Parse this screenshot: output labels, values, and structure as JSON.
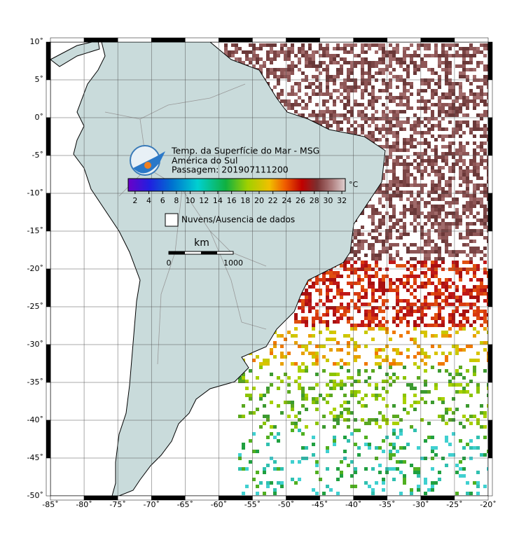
{
  "map": {
    "lon_range": [
      -85,
      -20
    ],
    "lat_range": [
      10,
      -50
    ],
    "lon_ticks": [
      {
        "value": -85,
        "label": "-85˚"
      },
      {
        "value": -80,
        "label": "-80˚"
      },
      {
        "value": -75,
        "label": "-75˚"
      },
      {
        "value": -70,
        "label": "-70˚"
      },
      {
        "value": -65,
        "label": "-65˚"
      },
      {
        "value": -60,
        "label": "-60˚"
      },
      {
        "value": -55,
        "label": "-55˚"
      },
      {
        "value": -50,
        "label": "-50˚"
      },
      {
        "value": -45,
        "label": "-45˚"
      },
      {
        "value": -40,
        "label": "-40˚"
      },
      {
        "value": -35,
        "label": "-35˚"
      },
      {
        "value": -30,
        "label": "-30˚"
      },
      {
        "value": -25,
        "label": "-25˚"
      },
      {
        "value": -20,
        "label": "-20˚"
      }
    ],
    "lat_ticks": [
      {
        "value": 10,
        "label": "10˚"
      },
      {
        "value": 5,
        "label": "5˚"
      },
      {
        "value": 0,
        "label": "0˚"
      },
      {
        "value": -5,
        "label": "-5˚"
      },
      {
        "value": -10,
        "label": "-10˚"
      },
      {
        "value": -15,
        "label": "-15˚"
      },
      {
        "value": -20,
        "label": "-20˚"
      },
      {
        "value": -25,
        "label": "-25˚"
      },
      {
        "value": -30,
        "label": "-30˚"
      },
      {
        "value": -35,
        "label": "-35˚"
      },
      {
        "value": -40,
        "label": "-40˚"
      },
      {
        "value": -45,
        "label": "-45˚"
      },
      {
        "value": -50,
        "label": "-50˚"
      }
    ]
  },
  "legend": {
    "title": [
      "Temp. da Superfície do Mar - MSG",
      "América do Sul",
      "Passagem: 201907111200"
    ],
    "colorbar": {
      "range": [
        1,
        32.5
      ],
      "ticks": [
        2,
        4,
        6,
        8,
        10,
        12,
        14,
        16,
        18,
        20,
        22,
        24,
        26,
        28,
        30,
        32
      ],
      "unit": "°C"
    },
    "no_data": "Nuvens/Ausencia de dados"
  },
  "scale_bar": {
    "unit": "km",
    "labels": [
      "0",
      "1000"
    ]
  }
}
